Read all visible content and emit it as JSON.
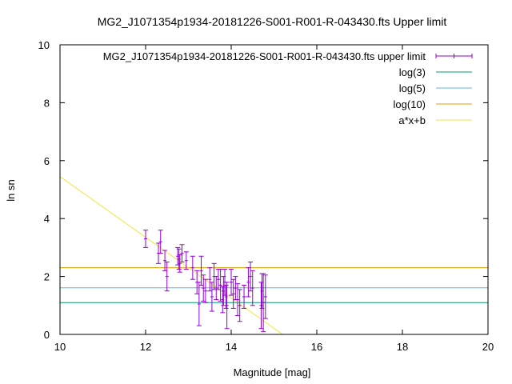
{
  "chart_data": {
    "type": "scatter",
    "title": "MG2_J1071354p1934-20181226-S001-R001-R-043430.fts Upper limit",
    "xlabel": "Magnitude [mag]",
    "ylabel": "ln sn",
    "xlim": [
      10,
      20
    ],
    "ylim": [
      0,
      10
    ],
    "x_ticks": [
      "10",
      "12",
      "14",
      "16",
      "18",
      "20"
    ],
    "y_ticks": [
      "0",
      "2",
      "4",
      "6",
      "8",
      "10"
    ],
    "grid": false,
    "legend_position": "top-right",
    "series": [
      {
        "name": "MG2_J1071354p1934-20181226-S001-R001-R-043430.fts upper limit",
        "kind": "errorbar",
        "color": "#9400d3",
        "points": [
          {
            "x": 12.0,
            "y": 3.3,
            "err": 0.3
          },
          {
            "x": 12.3,
            "y": 2.8,
            "err": 0.35
          },
          {
            "x": 12.35,
            "y": 3.2,
            "err": 0.4
          },
          {
            "x": 12.45,
            "y": 2.55,
            "err": 0.35
          },
          {
            "x": 12.5,
            "y": 2.0,
            "err": 0.5
          },
          {
            "x": 12.75,
            "y": 2.7,
            "err": 0.3
          },
          {
            "x": 12.78,
            "y": 2.6,
            "err": 0.35
          },
          {
            "x": 12.8,
            "y": 2.45,
            "err": 0.3
          },
          {
            "x": 12.85,
            "y": 2.8,
            "err": 0.3
          },
          {
            "x": 12.95,
            "y": 2.55,
            "err": 0.3
          },
          {
            "x": 13.1,
            "y": 2.3,
            "err": 0.4
          },
          {
            "x": 13.2,
            "y": 1.8,
            "err": 0.4
          },
          {
            "x": 13.25,
            "y": 1.05,
            "err": 0.75
          },
          {
            "x": 13.3,
            "y": 2.2,
            "err": 0.5
          },
          {
            "x": 13.35,
            "y": 1.6,
            "err": 0.45
          },
          {
            "x": 13.4,
            "y": 1.5,
            "err": 0.4
          },
          {
            "x": 13.5,
            "y": 1.9,
            "err": 0.4
          },
          {
            "x": 13.55,
            "y": 1.3,
            "err": 0.5
          },
          {
            "x": 13.6,
            "y": 2.0,
            "err": 0.45
          },
          {
            "x": 13.65,
            "y": 1.6,
            "err": 0.4
          },
          {
            "x": 13.7,
            "y": 1.9,
            "err": 0.35
          },
          {
            "x": 13.75,
            "y": 1.7,
            "err": 0.55
          },
          {
            "x": 13.8,
            "y": 1.2,
            "err": 0.45
          },
          {
            "x": 13.82,
            "y": 1.5,
            "err": 0.5
          },
          {
            "x": 13.85,
            "y": 1.8,
            "err": 0.45
          },
          {
            "x": 13.88,
            "y": 1.3,
            "err": 0.4
          },
          {
            "x": 13.9,
            "y": 1.0,
            "err": 0.8
          },
          {
            "x": 14.0,
            "y": 1.8,
            "err": 0.45
          },
          {
            "x": 14.05,
            "y": 1.4,
            "err": 0.5
          },
          {
            "x": 14.1,
            "y": 1.6,
            "err": 0.4
          },
          {
            "x": 14.15,
            "y": 1.2,
            "err": 0.55
          },
          {
            "x": 14.2,
            "y": 1.0,
            "err": 0.55
          },
          {
            "x": 14.3,
            "y": 1.3,
            "err": 0.4
          },
          {
            "x": 14.4,
            "y": 1.8,
            "err": 0.5
          },
          {
            "x": 14.45,
            "y": 2.0,
            "err": 0.5
          },
          {
            "x": 14.5,
            "y": 1.6,
            "err": 0.6
          },
          {
            "x": 14.7,
            "y": 1.0,
            "err": 0.8
          },
          {
            "x": 14.72,
            "y": 1.5,
            "err": 0.6
          },
          {
            "x": 14.75,
            "y": 1.1,
            "err": 1.0
          },
          {
            "x": 14.8,
            "y": 1.3,
            "err": 0.75
          }
        ]
      },
      {
        "name": "log(3)",
        "kind": "hline",
        "color": "#009e73",
        "y": 1.0986
      },
      {
        "name": "log(5)",
        "kind": "hline",
        "color": "#56b4e9",
        "y": 1.6094
      },
      {
        "name": "log(10)",
        "kind": "hline",
        "color": "#e69f00",
        "y": 2.3026
      },
      {
        "name": "a*x+b",
        "kind": "line",
        "color": "#f0e442",
        "x": [
          10,
          15.2
        ],
        "y": [
          5.45,
          0
        ]
      }
    ]
  }
}
